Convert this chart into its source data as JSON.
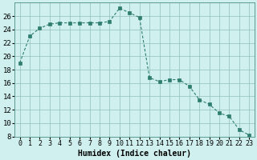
{
  "x": [
    0,
    1,
    2,
    3,
    4,
    5,
    6,
    7,
    8,
    9,
    10,
    11,
    12,
    13,
    14,
    15,
    16,
    17,
    18,
    19,
    20,
    21,
    22,
    23
  ],
  "y": [
    19.0,
    23.0,
    24.2,
    24.8,
    25.0,
    25.0,
    25.0,
    25.0,
    25.0,
    25.2,
    27.2,
    26.5,
    25.8,
    16.8,
    16.2,
    16.5,
    16.5,
    15.5,
    13.5,
    12.8,
    11.5,
    11.0,
    9.0,
    8.2
  ],
  "line_color": "#2e7d6e",
  "marker": "s",
  "marker_size": 2.2,
  "bg_color": "#cff0ee",
  "grid_color": "#8fbfb8",
  "xlabel": "Humidex (Indice chaleur)",
  "ylim": [
    8,
    28
  ],
  "yticks": [
    8,
    10,
    12,
    14,
    16,
    18,
    20,
    22,
    24,
    26
  ],
  "xticks": [
    0,
    1,
    2,
    3,
    4,
    5,
    6,
    7,
    8,
    9,
    10,
    11,
    12,
    13,
    14,
    15,
    16,
    17,
    18,
    19,
    20,
    21,
    22,
    23
  ],
  "xlabel_fontsize": 7,
  "tick_fontsize": 6,
  "ytick_fontsize": 6.5
}
